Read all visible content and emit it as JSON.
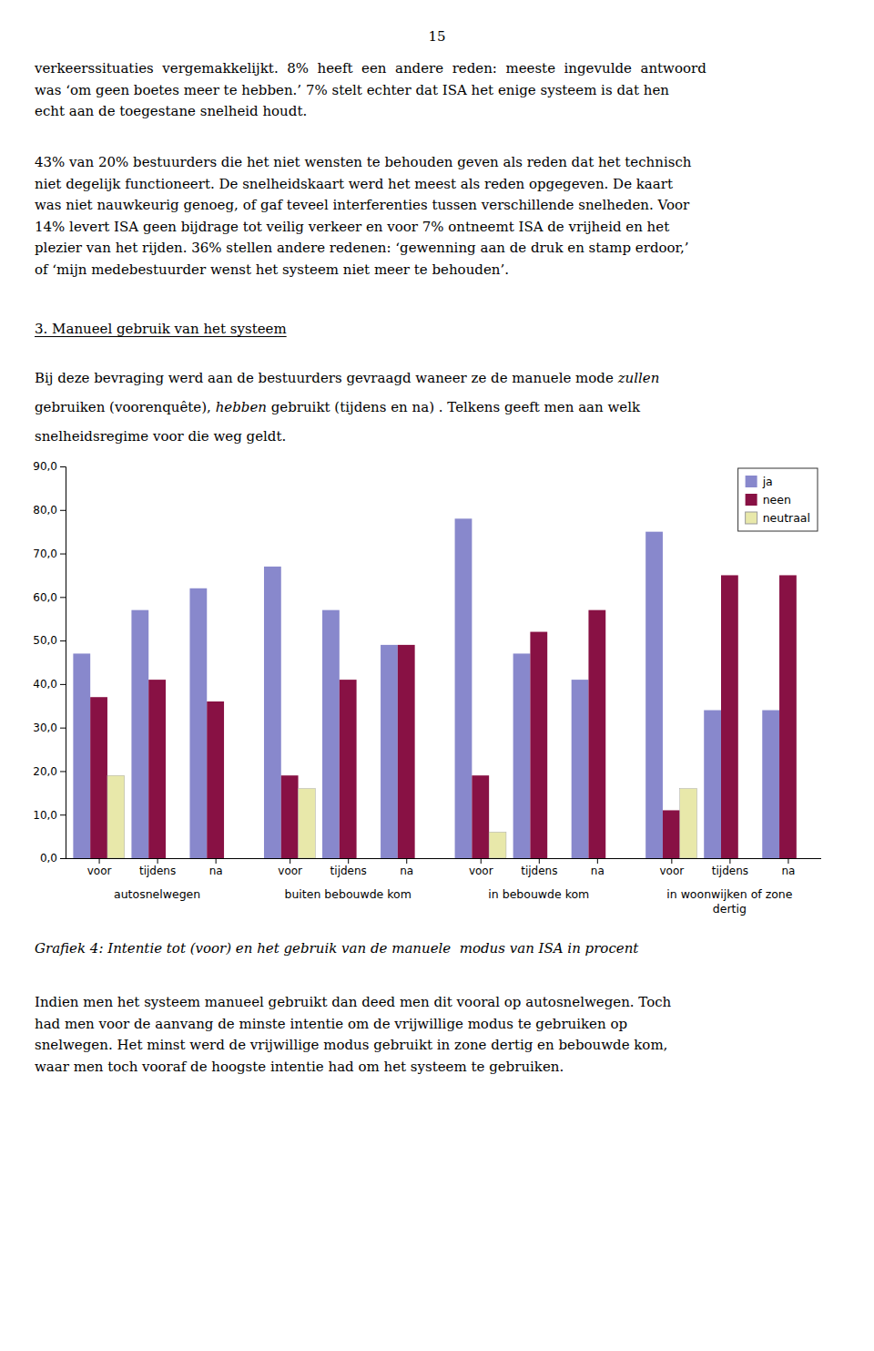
{
  "page_number": "15",
  "para1": "verkeerssituaties  vergemakkelijkt.  8%  heeft  een  andere  reden:  meeste  ingevulde  antwoord\nwas ‘om geen boetes meer te hebben.’ 7% stelt echter dat ISA het enige systeem is dat hen\necht aan de toegestane snelheid houdt.",
  "para2": "43% van 20% bestuurders die het niet wensten te behouden geven als reden dat het technisch\nniet degelijk functioneert. De snelheidskaart werd het meest als reden opgegeven. De kaart\nwas niet nauwkeurig genoeg, of gaf teveel interferenties tussen verschillende snelheden. Voor\n14% levert ISA geen bijdrage tot veilig verkeer en voor 7% ontneemt ISA de vrijheid en het\nplezier van het rijden. 36% stellen andere redenen: ‘gewenning aan de druk en stamp erdoor,’\nof ‘mijn medebestuurder wenst het systeem niet meer te behouden’.",
  "section3": "3. Manueel gebruik van het systeem",
  "para3a": "Bij deze bevraging werd aan de bestuurders gevraagd waneer ze de manuele mode ",
  "para3a_italic": "zullen",
  "para3b": "gebruiken (voorenquête),",
  "para3b_italic": " hebben",
  "para3c": " gebruikt (tijdens en na) . Telkens geeft men aan welk\nsnelheidsregime voor die weg geldt.",
  "caption": "Grafiek 4: Intentie tot (voor) en het gebruik van de manuele  modus van ISA in procent",
  "para4": "Indien men het systeem manueel gebruikt dan deed men dit vooral op autosnelwegen. Toch\nhad men voor de aanvang de minste intentie om de vrijwillige modus te gebruiken op\nsnelwegen. Het minst werd de vrijwillige modus gebruikt in zone dertig en bebouwde kom,\nwaar men toch vooraf de hoogste intentie had om het systeem te gebruiken.",
  "chart_data": {
    "type": "bar",
    "categories": [
      "voor",
      "tijdens",
      "na",
      "voor",
      "tijdens",
      "na",
      "voor",
      "tijdens",
      "na",
      "voor",
      "tijdens",
      "na"
    ],
    "groups": [
      "autosnelwegen",
      "buiten bebouwde kom",
      "in bebouwde kom",
      "in woonwijken of zone\ndertig"
    ],
    "series": [
      {
        "name": "ja",
        "color": "#8888cc",
        "values": [
          47,
          57,
          62,
          67,
          57,
          49,
          78,
          47,
          41,
          75,
          34,
          34
        ]
      },
      {
        "name": "neen",
        "color": "#881144",
        "values": [
          37,
          41,
          36,
          19,
          41,
          49,
          19,
          52,
          57,
          11,
          65,
          65
        ]
      },
      {
        "name": "neutraal",
        "color": "#e8e8aa",
        "values": [
          19,
          0,
          0,
          16,
          0,
          0,
          6,
          0,
          0,
          16,
          0,
          0
        ]
      }
    ],
    "ylim": [
      0,
      90
    ],
    "yticks": [
      {
        "value": 0,
        "label": "0,0"
      },
      {
        "value": 10,
        "label": "10,0"
      },
      {
        "value": 20,
        "label": "20,0"
      },
      {
        "value": 30,
        "label": "30,0"
      },
      {
        "value": 40,
        "label": "40,0"
      },
      {
        "value": 50,
        "label": "50,0"
      },
      {
        "value": 60,
        "label": "60,0"
      },
      {
        "value": 70,
        "label": "70,0"
      },
      {
        "value": 80,
        "label": "80,0"
      },
      {
        "value": 90,
        "label": "90,0"
      }
    ],
    "grid": false,
    "legend": "upper-right"
  }
}
